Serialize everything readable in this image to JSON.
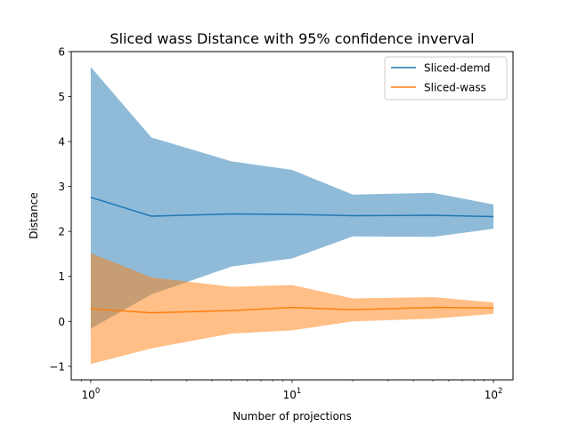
{
  "chart_data": {
    "type": "line",
    "title": "Sliced wass Distance with 95% confidence inverval",
    "xlabel": "Number of projections",
    "ylabel": "Distance",
    "x_scale": "log",
    "x": [
      1,
      2,
      5,
      10,
      20,
      50,
      100
    ],
    "xlim": [
      0.8,
      125
    ],
    "ylim": [
      -1.3,
      6.0
    ],
    "x_ticks": [
      {
        "value": 1,
        "base": "10",
        "exp": "0"
      },
      {
        "value": 10,
        "base": "10",
        "exp": "1"
      },
      {
        "value": 100,
        "base": "10",
        "exp": "2"
      }
    ],
    "y_ticks": [
      {
        "value": -1,
        "label": "−1"
      },
      {
        "value": 0,
        "label": "0"
      },
      {
        "value": 1,
        "label": "1"
      },
      {
        "value": 2,
        "label": "2"
      },
      {
        "value": 3,
        "label": "3"
      },
      {
        "value": 4,
        "label": "4"
      },
      {
        "value": 5,
        "label": "5"
      },
      {
        "value": 6,
        "label": "6"
      }
    ],
    "grid": false,
    "legend_position": "top-right",
    "series": [
      {
        "name": "Sliced-demd",
        "color": "#1f77b4",
        "band_color": "#1f77b4",
        "band_opacity": 0.5,
        "values": [
          2.76,
          2.34,
          2.39,
          2.38,
          2.35,
          2.36,
          2.33
        ],
        "upper": [
          5.66,
          4.09,
          3.56,
          3.37,
          2.82,
          2.86,
          2.6
        ],
        "lower": [
          -0.16,
          0.6,
          1.22,
          1.4,
          1.89,
          1.88,
          2.06
        ]
      },
      {
        "name": "Sliced-wass",
        "color": "#ff7f0e",
        "band_color": "#ff7f0e",
        "band_opacity": 0.5,
        "values": [
          0.28,
          0.19,
          0.24,
          0.31,
          0.26,
          0.31,
          0.3
        ],
        "upper": [
          1.52,
          0.98,
          0.77,
          0.81,
          0.51,
          0.54,
          0.42
        ],
        "lower": [
          -0.95,
          -0.6,
          -0.27,
          -0.2,
          0.0,
          0.06,
          0.17
        ]
      }
    ]
  }
}
